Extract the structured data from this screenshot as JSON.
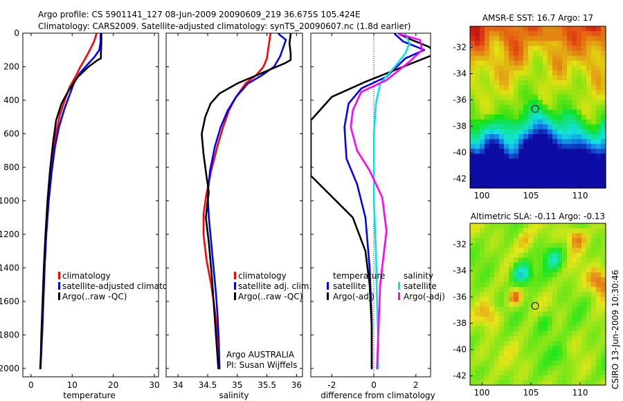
{
  "header": {
    "line1": "Argo profile: CS 5901141_127 08-Jun-2009 20090609_219 36.675S 105.424E",
    "line2": "Climatology: CARS2009. Satellite-adjusted climatology: synTS_20090607.nc (1.8d earlier)"
  },
  "colors": {
    "clim": "#ff0000",
    "sat": "#0000ff",
    "argo": "#000000",
    "sat_sal": "#00e5e5",
    "argo_sal": "#ff00ff"
  },
  "chart_data": [
    {
      "type": "line",
      "title": "",
      "xlabel": "temperature",
      "ylabel": "",
      "xlim": [
        -2,
        31
      ],
      "ylim": [
        2050,
        0
      ],
      "xticks": [
        0,
        10,
        20,
        30
      ],
      "yticks": [
        0,
        200,
        400,
        600,
        800,
        1000,
        1200,
        1400,
        1600,
        1800,
        2000
      ],
      "legend": [
        "climatology",
        "satellite-adjusted climatology",
        "Argo(..raw -QC)"
      ],
      "series": [
        {
          "name": "climatology",
          "color": "#ff0000",
          "x": [
            15.9,
            15.3,
            14.3,
            13.2,
            12.0,
            10.8,
            9.4,
            8.2,
            7.1,
            6.2,
            5.4,
            4.7,
            4.1,
            3.6,
            3.2,
            2.9,
            2.6,
            2.5,
            2.3,
            2.2
          ],
          "y": [
            5,
            50,
            100,
            150,
            200,
            260,
            320,
            400,
            480,
            580,
            700,
            850,
            1000,
            1200,
            1400,
            1600,
            1800,
            1900,
            1950,
            2000
          ]
        },
        {
          "name": "satellite-adjusted climatology",
          "color": "#0000ff",
          "x": [
            16.9,
            16.9,
            16.6,
            15.5,
            13.6,
            11.8,
            10.4,
            9.2,
            8.0,
            6.8,
            5.8,
            5.0,
            4.3,
            3.7,
            3.3,
            3.0,
            2.7,
            2.5,
            2.3
          ],
          "y": [
            5,
            50,
            100,
            140,
            190,
            240,
            300,
            380,
            460,
            560,
            680,
            830,
            1000,
            1200,
            1400,
            1600,
            1800,
            1900,
            2000
          ]
        },
        {
          "name": "Argo(..raw -QC)",
          "color": "#000000",
          "x": [
            17.1,
            17.1,
            17.0,
            17.0,
            16.2,
            14.0,
            11.4,
            9.2,
            7.4,
            6.1,
            5.3,
            4.6,
            4.0,
            3.5,
            3.1,
            2.8,
            2.5,
            2.3
          ],
          "y": [
            5,
            60,
            120,
            150,
            160,
            200,
            260,
            340,
            420,
            520,
            660,
            820,
            1000,
            1200,
            1400,
            1600,
            1800,
            2000
          ]
        }
      ]
    },
    {
      "type": "line",
      "title": "",
      "xlabel": "salinity",
      "xlim": [
        33.8,
        36.1
      ],
      "ylim": [
        2050,
        0
      ],
      "xticks": [
        34,
        34.5,
        35,
        35.5,
        36
      ],
      "legend": [
        "climatology",
        "satellite adj. clim.",
        "Argo(..raw -QC)"
      ],
      "annotations": [
        "Argo AUSTRALIA",
        "PI: Susan Wijffels"
      ],
      "series": [
        {
          "name": "climatology",
          "color": "#ff0000",
          "x": [
            35.56,
            35.54,
            35.52,
            35.5,
            35.44,
            35.32,
            35.14,
            34.98,
            34.86,
            34.76,
            34.66,
            34.56,
            34.48,
            34.43,
            34.43,
            34.48,
            34.56,
            34.62,
            34.67,
            34.69,
            34.7
          ],
          "y": [
            5,
            50,
            100,
            150,
            200,
            250,
            300,
            380,
            460,
            560,
            680,
            820,
            960,
            1080,
            1200,
            1350,
            1500,
            1650,
            1800,
            1900,
            2000
          ]
        },
        {
          "name": "satellite adj. clim.",
          "color": "#0000ff",
          "x": [
            35.7,
            35.82,
            35.78,
            35.72,
            35.62,
            35.42,
            35.18,
            34.98,
            34.84,
            34.72,
            34.62,
            34.54,
            34.5,
            34.52,
            34.56,
            34.6,
            34.64,
            34.67,
            34.69,
            34.7
          ],
          "y": [
            5,
            40,
            80,
            140,
            200,
            250,
            300,
            380,
            460,
            560,
            680,
            820,
            960,
            1100,
            1250,
            1400,
            1550,
            1700,
            1850,
            2000
          ]
        },
        {
          "name": "Argo(..raw -QC)",
          "color": "#000000",
          "x": [
            35.9,
            35.88,
            35.9,
            35.9,
            35.8,
            35.4,
            35.0,
            34.7,
            34.55,
            34.46,
            34.4,
            34.43,
            34.48,
            34.52,
            34.5,
            34.47,
            34.52,
            34.57,
            34.61,
            34.65,
            34.68
          ],
          "y": [
            5,
            60,
            120,
            160,
            180,
            240,
            300,
            360,
            420,
            500,
            600,
            720,
            850,
            950,
            1000,
            1100,
            1250,
            1450,
            1650,
            1850,
            2000
          ]
        }
      ]
    },
    {
      "type": "line",
      "title": "",
      "xlabel": "difference from climatology",
      "xlim": [
        -3.0,
        2.7
      ],
      "ylim": [
        2050,
        0
      ],
      "xticks": [
        -2,
        0,
        2
      ],
      "legend_temperature": [
        "temperature",
        "satellite",
        "Argo(-adj)"
      ],
      "legend_salinity": [
        "salinity",
        "satellite",
        "Argo(-adj)"
      ],
      "series": [
        {
          "name": "temperature satellite",
          "color": "#0000ff",
          "x": [
            1.0,
            1.4,
            2.4,
            1.5,
            0.6,
            -0.6,
            -1.2,
            -1.4,
            -1.3,
            -0.8,
            -0.4,
            -0.2,
            -0.1,
            -0.1
          ],
          "y": [
            5,
            50,
            100,
            150,
            260,
            330,
            420,
            560,
            750,
            900,
            1100,
            1400,
            1700,
            2000
          ]
        },
        {
          "name": "temperature Argo(-adj)",
          "color": "#000000",
          "x": [
            1.2,
            1.8,
            2.6,
            3.0,
            -0.4,
            -2.0,
            -3.0,
            -3.0,
            -2.2,
            -1.0,
            -0.4,
            -0.2,
            -0.1,
            -0.1
          ],
          "y": [
            5,
            40,
            80,
            120,
            290,
            380,
            520,
            850,
            950,
            1100,
            1300,
            1500,
            1750,
            2000
          ]
        },
        {
          "name": "salinity satellite",
          "color": "#00e5e5",
          "x": [
            1.5,
            1.7,
            1.5,
            1.0,
            0.3,
            0.1,
            0.0,
            0.0,
            0.0,
            0.1,
            0.15,
            0.2,
            0.2
          ],
          "y": [
            5,
            60,
            120,
            200,
            300,
            420,
            600,
            800,
            1000,
            1300,
            1600,
            1800,
            2000
          ]
        },
        {
          "name": "salinity Argo(-adj)",
          "color": "#ff00ff",
          "x": [
            1.2,
            2.2,
            2.3,
            1.7,
            0.6,
            -0.6,
            -1.0,
            -1.1,
            -0.8,
            -0.2,
            0.4,
            0.6,
            0.3,
            0.15
          ],
          "y": [
            5,
            40,
            100,
            170,
            280,
            350,
            460,
            560,
            700,
            820,
            980,
            1180,
            1500,
            2000
          ]
        }
      ]
    },
    {
      "type": "heatmap",
      "title": "AMSR-E SST: 16.7 Argo: 17",
      "xticks": [
        100,
        105,
        110
      ],
      "yticks": [
        -32,
        -34,
        -36,
        -38,
        -40,
        -42
      ],
      "xlim": [
        98.8,
        112.6
      ],
      "ylim": [
        -42.7,
        -30.4
      ],
      "marker": {
        "lon": 105.424,
        "lat": -36.675
      }
    },
    {
      "type": "heatmap",
      "title": "Altimetric SLA: -0.11 Argo: -0.13",
      "xticks": [
        100,
        105,
        110
      ],
      "yticks": [
        -32,
        -34,
        -36,
        -38,
        -40,
        -42
      ],
      "xlim": [
        98.8,
        112.6
      ],
      "ylim": [
        -42.7,
        -30.4
      ],
      "marker": {
        "lon": 105.424,
        "lat": -36.675
      },
      "side_label": "CSIRO 13-Jun-2009 10:30:46"
    }
  ]
}
